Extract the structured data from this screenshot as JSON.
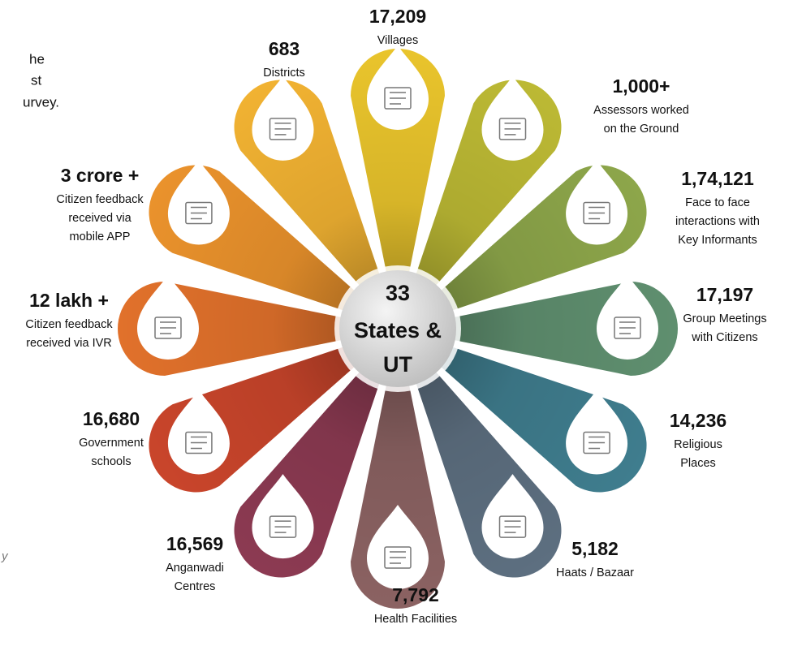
{
  "intro_fragments": [
    "he",
    "st",
    "urvey."
  ],
  "note_fragment": "y",
  "center": [
    "33",
    "States &",
    "UT"
  ],
  "items": [
    {
      "value": "17,209",
      "lines": [
        "Villages"
      ]
    },
    {
      "value": "1,000+",
      "lines": [
        "Assessors worked",
        "on the Ground"
      ]
    },
    {
      "value": "1,74,121",
      "lines": [
        "Face to face",
        "interactions with",
        "Key Informants"
      ]
    },
    {
      "value": "17,197",
      "lines": [
        "Group Meetings",
        "with Citizens"
      ]
    },
    {
      "value": "14,236",
      "lines": [
        "Religious",
        "Places"
      ]
    },
    {
      "value": "5,182",
      "lines": [
        "Haats / Bazaar"
      ]
    },
    {
      "value": "7,792",
      "lines": [
        "Health Facilities"
      ]
    },
    {
      "value": "16,569",
      "lines": [
        "Anganwadi",
        "Centres"
      ]
    },
    {
      "value": "16,680",
      "lines": [
        "Government",
        "schools"
      ]
    },
    {
      "value": "12 lakh +",
      "lines": [
        "Citizen feedback",
        "received via  IVR"
      ]
    },
    {
      "value": "3 crore +",
      "lines": [
        "Citizen feedback",
        "received via",
        "mobile APP"
      ]
    },
    {
      "value": "683",
      "lines": [
        "Districts"
      ]
    }
  ]
}
